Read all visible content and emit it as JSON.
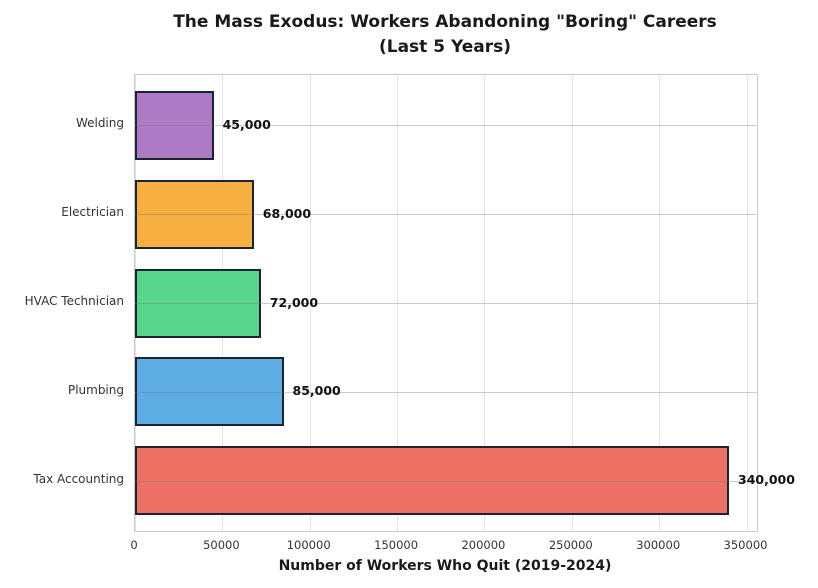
{
  "figure": {
    "background": "#ffffff",
    "title_line1": "The Mass Exodus: Workers Abandoning \"Boring\" Careers",
    "title_line2": "(Last 5 Years)"
  },
  "chart_data": {
    "type": "bar",
    "orientation": "horizontal",
    "title": "The Mass Exodus: Workers Abandoning \"Boring\" Careers (Last 5 Years)",
    "xlabel": "Number of Workers Who Quit (2019-2024)",
    "ylabel": "",
    "categories": [
      "Welding",
      "Electrician",
      "HVAC Technician",
      "Plumbing",
      "Tax Accounting"
    ],
    "values": [
      45000,
      68000,
      72000,
      85000,
      340000
    ],
    "value_labels": [
      "45,000",
      "68,000",
      "72,000",
      "85,000",
      "340,000"
    ],
    "bar_colors": [
      "#af7ac5",
      "#f5b041",
      "#58d68d",
      "#5dade2",
      "#ec7063"
    ],
    "bar_edge_color": "#1b2230",
    "xlim": [
      0,
      356000
    ],
    "xticks": [
      0,
      50000,
      100000,
      150000,
      200000,
      250000,
      300000,
      350000
    ],
    "xtick_labels": [
      "0",
      "50000",
      "100000",
      "150000",
      "200000",
      "250000",
      "300000",
      "350000"
    ],
    "grid": true,
    "grid_vertical_color": "#e3e3e3",
    "grid_horizontal_color": "rgba(120,120,120,0.38)",
    "plot_border_color": "#cccccc",
    "legend": "none"
  }
}
